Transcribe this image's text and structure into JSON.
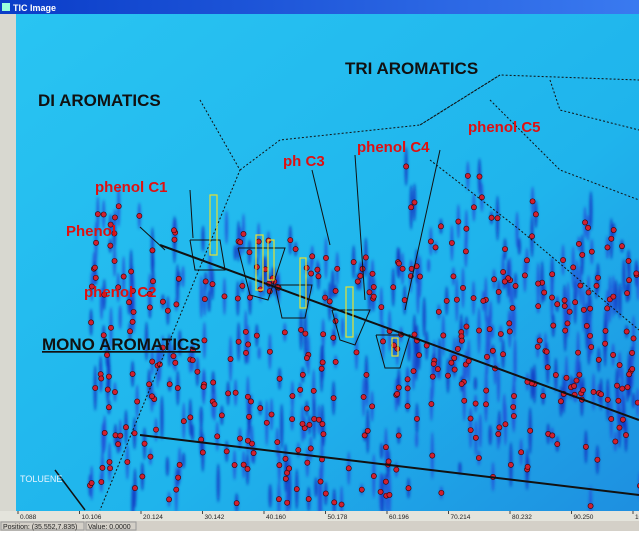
{
  "window": {
    "title": "TIC Image"
  },
  "annotations": {
    "tri": "TRI AROMATICS",
    "di": "DI AROMATICS",
    "mono": "MONO AROMATICS",
    "phenol_c1": "phenol C1",
    "phenol": "Phenol",
    "phenol_c2": "phenol C2",
    "ph_c3": "ph C3",
    "phenol_c4": "phenol C4",
    "phenol_c5": "phenol C5",
    "toluene": "TOLUENE"
  },
  "x_axis": {
    "labels": [
      "0.088",
      "10.106",
      "20.124",
      "30.142",
      "40.160",
      "50.178",
      "60.196",
      "70.214",
      "80.232",
      "90.250",
      "100.2"
    ]
  },
  "status": {
    "position": "Position: (35.552,7.835)",
    "value": "Value: 0.0000"
  }
}
